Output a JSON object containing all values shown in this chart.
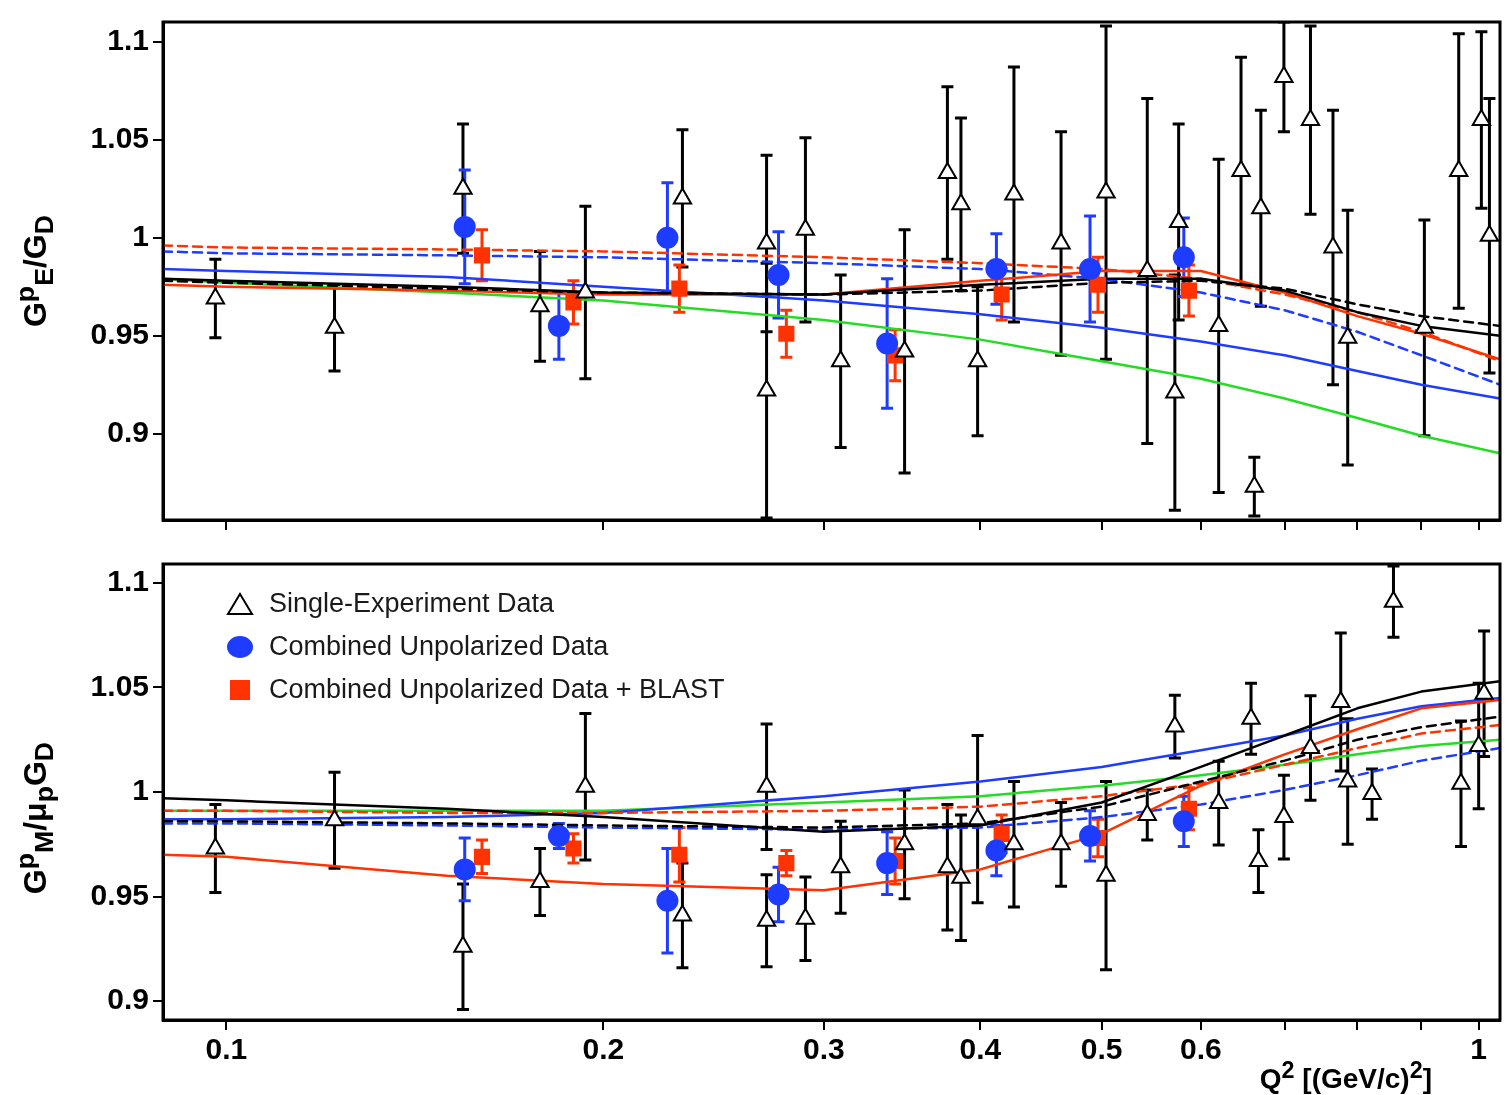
{
  "chart_data": [
    {
      "type": "scatter",
      "ylabel": "G$^{p}$$_{E}$/G$_{D}$",
      "log": "x",
      "legend": false,
      "tick_labels": "y",
      "xlim": [
        0.089,
        1.04
      ],
      "xticks": [
        0.1,
        0.2,
        0.3,
        0.4,
        0.5,
        0.6,
        {
          "value": 0.7,
          "label": null
        },
        {
          "value": 0.8,
          "label": null
        },
        {
          "value": 0.9,
          "label": null
        },
        1
      ],
      "ylim": [
        0.856,
        1.11
      ],
      "yticks": [
        0.9,
        0.95,
        1,
        1.05,
        1.1
      ],
      "series": [
        {
          "type": "scatter",
          "marker": "triangle",
          "color": "#000000",
          "x": [
            0.098,
            0.122,
            0.1545,
            0.178,
            0.1935,
            0.2313,
            0.27,
            0.27,
            0.29,
            0.3094,
            0.348,
            0.3765,
            0.386,
            0.398,
            0.4255,
            0.464,
            0.504,
            0.5437,
            0.572,
            0.576,
            0.62,
            0.646,
            0.662,
            0.67,
            0.699,
            0.734,
            0.765,
            0.786,
            0.905,
            0.964,
            1.005,
            1.02
          ],
          "values": [
            0.969,
            0.954,
            1.025,
            0.965,
            0.972,
            1.02,
            0.922,
            0.997,
            1.004,
            0.937,
            0.942,
            1.033,
            1.017,
            0.937,
            1.022,
            0.997,
            1.023,
            0.983,
            0.921,
            1.008,
            0.955,
            1.034,
            0.873,
            1.015,
            1.082,
            1.06,
            0.995,
            0.949,
            0.954,
            1.034,
            1.06,
            1.001
          ],
          "errors": [
            0.02,
            0.022,
            0.033,
            0.028,
            0.044,
            0.035,
            0.065,
            0.045,
            0.047,
            0.044,
            0.062,
            0.044,
            0.044,
            0.038,
            0.065,
            0.057,
            0.085,
            0.088,
            0.06,
            0.05,
            0.085,
            0.058,
            0.015,
            0.05,
            0.028,
            0.048,
            0.07,
            0.065,
            0.055,
            0.07,
            0.045,
            0.07
          ]
        },
        {
          "type": "scatter",
          "marker": "circle",
          "color": "#1e3cff",
          "x": [
            0.155,
            0.1843,
            0.225,
            0.276,
            0.337,
            0.412,
            0.4894,
            0.5815
          ],
          "values": [
            1.0055,
            0.955,
            1.0,
            0.981,
            0.946,
            0.984,
            0.984,
            0.99
          ],
          "errors": [
            0.029,
            0.017,
            0.028,
            0.022,
            0.033,
            0.018,
            0.027,
            0.02
          ]
        },
        {
          "type": "scatter",
          "marker": "square",
          "color": "#ff3300",
          "x": [
            0.16,
            0.1893,
            0.23,
            0.28,
            0.342,
            0.416,
            0.4966,
            0.587
          ],
          "values": [
            0.991,
            0.967,
            0.974,
            0.951,
            0.94,
            0.971,
            0.976,
            0.973
          ],
          "errors": [
            0.013,
            0.011,
            0.012,
            0.012,
            0.013,
            0.013,
            0.014,
            0.013
          ]
        },
        {
          "type": "line",
          "color": "#000000",
          "x": [
            0.089,
            0.1,
            0.15,
            0.2,
            0.3,
            0.4,
            0.5,
            0.6,
            0.7,
            0.8,
            0.9,
            1.04
          ],
          "values": [
            0.979,
            0.978,
            0.975,
            0.972,
            0.971,
            0.976,
            0.979,
            0.979,
            0.973,
            0.962,
            0.955,
            0.95
          ]
        },
        {
          "type": "line",
          "color": "#000000",
          "line_style": "dashed",
          "x": [
            0.089,
            0.1,
            0.15,
            0.2,
            0.3,
            0.4,
            0.5,
            0.6,
            0.7,
            0.8,
            0.9,
            1.04
          ],
          "values": [
            0.978,
            0.977,
            0.974,
            0.972,
            0.971,
            0.973,
            0.977,
            0.978,
            0.974,
            0.966,
            0.96,
            0.955
          ]
        },
        {
          "type": "line",
          "color": "#ff3300",
          "x": [
            0.089,
            0.1,
            0.15,
            0.2,
            0.3,
            0.4,
            0.5,
            0.6,
            0.7,
            0.8,
            0.9,
            1.04
          ],
          "values": [
            0.976,
            0.975,
            0.973,
            0.971,
            0.971,
            0.978,
            0.983,
            0.983,
            0.972,
            0.96,
            0.951,
            0.938
          ]
        },
        {
          "type": "line",
          "color": "#ff3300",
          "line_style": "dashed",
          "x": [
            0.089,
            0.1,
            0.15,
            0.2,
            0.3,
            0.4,
            0.5,
            0.6,
            0.7,
            0.8,
            0.9,
            1.04
          ],
          "values": [
            0.996,
            0.995,
            0.994,
            0.993,
            0.99,
            0.987,
            0.984,
            0.979,
            0.971,
            0.962,
            0.952,
            0.937
          ]
        },
        {
          "type": "line",
          "color": "#1e3cff",
          "x": [
            0.089,
            0.1,
            0.15,
            0.2,
            0.3,
            0.4,
            0.5,
            0.6,
            0.7,
            0.8,
            0.9,
            1.04
          ],
          "values": [
            0.984,
            0.983,
            0.98,
            0.975,
            0.968,
            0.961,
            0.954,
            0.947,
            0.94,
            0.932,
            0.925,
            0.918
          ]
        },
        {
          "type": "line",
          "color": "#1e3cff",
          "line_style": "dashed",
          "x": [
            0.089,
            0.1,
            0.15,
            0.2,
            0.3,
            0.4,
            0.5,
            0.6,
            0.7,
            0.8,
            0.9,
            1.04
          ],
          "values": [
            0.993,
            0.992,
            0.991,
            0.99,
            0.987,
            0.984,
            0.979,
            0.972,
            0.963,
            0.952,
            0.94,
            0.925
          ]
        },
        {
          "type": "line",
          "color": "#22dd22",
          "x": [
            0.089,
            0.1,
            0.15,
            0.2,
            0.3,
            0.4,
            0.5,
            0.6,
            0.7,
            0.8,
            0.9,
            1.04
          ],
          "values": [
            0.979,
            0.977,
            0.972,
            0.968,
            0.958,
            0.948,
            0.937,
            0.928,
            0.918,
            0.908,
            0.899,
            0.89
          ]
        }
      ]
    },
    {
      "type": "scatter",
      "ylabel": "G$^{p}$$_{M}$/μ$_{p}$G$_{D}$",
      "xlabel": "Q$^{2}$  [(GeV/c)$^{2}$]",
      "log": "x",
      "legend": "top left",
      "xlim": [
        0.089,
        1.04
      ],
      "xticks": [
        0.1,
        0.2,
        0.3,
        0.4,
        0.5,
        0.6,
        {
          "value": 0.7,
          "label": null
        },
        {
          "value": 0.8,
          "label": null
        },
        {
          "value": 0.9,
          "label": null
        },
        1
      ],
      "ylim": [
        0.891,
        1.109
      ],
      "yticks": [
        0.9,
        0.95,
        1,
        1.05,
        1.1
      ],
      "series": [
        {
          "type": "scatter",
          "name": "Single-Experiment Data",
          "marker": "triangle",
          "color": "#000000",
          "x": [
            0.098,
            0.122,
            0.1545,
            0.178,
            0.1935,
            0.2313,
            0.27,
            0.27,
            0.29,
            0.3094,
            0.348,
            0.3765,
            0.386,
            0.398,
            0.4255,
            0.464,
            0.504,
            0.5437,
            0.572,
            0.62,
            0.658,
            0.667,
            0.699,
            0.734,
            0.776,
            0.786,
            0.822,
            0.855,
            0.968,
            1.0,
            1.01
          ],
          "values": [
            0.973,
            0.9865,
            0.926,
            0.957,
            1.0025,
            0.941,
            1.0025,
            0.9384,
            0.9394,
            0.964,
            0.975,
            0.964,
            0.959,
            0.987,
            0.975,
            0.975,
            0.96,
            0.989,
            1.0313,
            0.9947,
            1.035,
            0.967,
            0.988,
            1.021,
            1.043,
            1.005,
            0.999,
            1.091,
            1.004,
            1.022,
            1.047
          ],
          "errors": [
            0.021,
            0.023,
            0.03,
            0.016,
            0.035,
            0.025,
            0.03,
            0.022,
            0.02,
            0.022,
            0.026,
            0.03,
            0.03,
            0.04,
            0.03,
            0.02,
            0.045,
            0.012,
            0.015,
            0.02,
            0.017,
            0.015,
            0.02,
            0.025,
            0.033,
            0.03,
            0.012,
            0.017,
            0.03,
            0.03,
            0.03
          ]
        },
        {
          "type": "scatter",
          "name": "Combined Unpolarized Data",
          "marker": "circle",
          "color": "#1e3cff",
          "x": [
            0.155,
            0.1843,
            0.225,
            0.276,
            0.337,
            0.412,
            0.4894,
            0.5815
          ],
          "values": [
            0.963,
            0.979,
            0.948,
            0.951,
            0.966,
            0.972,
            0.979,
            0.986
          ],
          "errors": [
            0.015,
            0.006,
            0.025,
            0.013,
            0.015,
            0.012,
            0.012,
            0.012
          ]
        },
        {
          "type": "scatter",
          "name": "Combined Unpolarized Data + BLAST",
          "marker": "square",
          "color": "#ff3300",
          "x": [
            0.16,
            0.1893,
            0.23,
            0.28,
            0.342,
            0.416,
            0.4966,
            0.587
          ],
          "values": [
            0.969,
            0.973,
            0.97,
            0.966,
            0.967,
            0.98,
            0.978,
            0.992
          ],
          "errors": [
            0.008,
            0.007,
            0.013,
            0.006,
            0.011,
            0.009,
            0.009,
            0.01
          ]
        },
        {
          "type": "line",
          "color": "#000000",
          "x": [
            0.089,
            0.1,
            0.15,
            0.2,
            0.3,
            0.4,
            0.5,
            0.6,
            0.7,
            0.8,
            0.9,
            1.04
          ],
          "values": [
            0.997,
            0.996,
            0.992,
            0.988,
            0.981,
            0.984,
            0.995,
            1.012,
            1.027,
            1.04,
            1.048,
            1.053
          ]
        },
        {
          "type": "line",
          "color": "#000000",
          "line_style": "dashed",
          "x": [
            0.089,
            0.1,
            0.15,
            0.2,
            0.3,
            0.4,
            0.5,
            0.6,
            0.7,
            0.8,
            0.9,
            1.04
          ],
          "values": [
            0.986,
            0.986,
            0.985,
            0.984,
            0.983,
            0.985,
            0.993,
            1.005,
            1.015,
            1.025,
            1.031,
            1.036
          ]
        },
        {
          "type": "line",
          "color": "#ff3300",
          "x": [
            0.089,
            0.1,
            0.15,
            0.2,
            0.3,
            0.4,
            0.5,
            0.6,
            0.7,
            0.8,
            0.9,
            1.04
          ],
          "values": [
            0.97,
            0.969,
            0.96,
            0.956,
            0.953,
            0.963,
            0.98,
            1.003,
            1.018,
            1.03,
            1.04,
            1.044
          ]
        },
        {
          "type": "line",
          "color": "#ff3300",
          "line_style": "dashed",
          "x": [
            0.089,
            0.1,
            0.15,
            0.2,
            0.3,
            0.4,
            0.5,
            0.6,
            0.7,
            0.8,
            0.9,
            1.04
          ],
          "values": [
            0.991,
            0.991,
            0.99,
            0.99,
            0.991,
            0.993,
            0.998,
            1.004,
            1.013,
            1.021,
            1.028,
            1.032
          ]
        },
        {
          "type": "line",
          "color": "#1e3cff",
          "x": [
            0.089,
            0.1,
            0.15,
            0.2,
            0.3,
            0.4,
            0.5,
            0.6,
            0.7,
            0.8,
            0.9,
            1.04
          ],
          "values": [
            0.987,
            0.987,
            0.988,
            0.99,
            0.998,
            1.005,
            1.012,
            1.02,
            1.027,
            1.035,
            1.041,
            1.045
          ]
        },
        {
          "type": "line",
          "color": "#1e3cff",
          "line_style": "dashed",
          "x": [
            0.089,
            0.1,
            0.15,
            0.2,
            0.3,
            0.4,
            0.5,
            0.6,
            0.7,
            0.8,
            0.9,
            1.04
          ],
          "values": [
            0.985,
            0.985,
            0.984,
            0.983,
            0.982,
            0.983,
            0.988,
            0.994,
            1.001,
            1.008,
            1.015,
            1.021
          ]
        },
        {
          "type": "line",
          "color": "#22dd22",
          "x": [
            0.089,
            0.1,
            0.15,
            0.2,
            0.3,
            0.4,
            0.5,
            0.6,
            0.7,
            0.8,
            0.9,
            1.04
          ],
          "values": [
            0.991,
            0.991,
            0.991,
            0.991,
            0.995,
            0.998,
            1.003,
            1.008,
            1.013,
            1.018,
            1.022,
            1.025
          ]
        }
      ]
    }
  ]
}
